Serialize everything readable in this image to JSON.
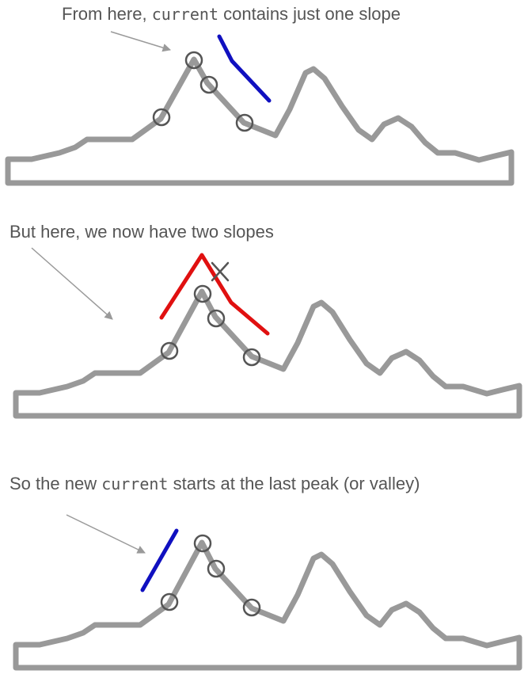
{
  "panels": [
    {
      "caption_before": "From here, ",
      "caption_code": "current",
      "caption_after": " contains just one slope"
    },
    {
      "caption_before": "But here, we now have two slopes",
      "caption_code": "",
      "caption_after": ""
    },
    {
      "caption_before": "So the new ",
      "caption_code": "current",
      "caption_after": " starts at the last peak (or valley)"
    }
  ],
  "colors": {
    "terrain": "#999999",
    "marker": "#555555",
    "slope_single": "#1010c0",
    "slope_double": "#e01010",
    "caption_text": "#555555"
  },
  "icons": {
    "marker": "circle-marker-icon",
    "rejected": "cross-mark-icon",
    "pointer": "arrow-icon"
  }
}
